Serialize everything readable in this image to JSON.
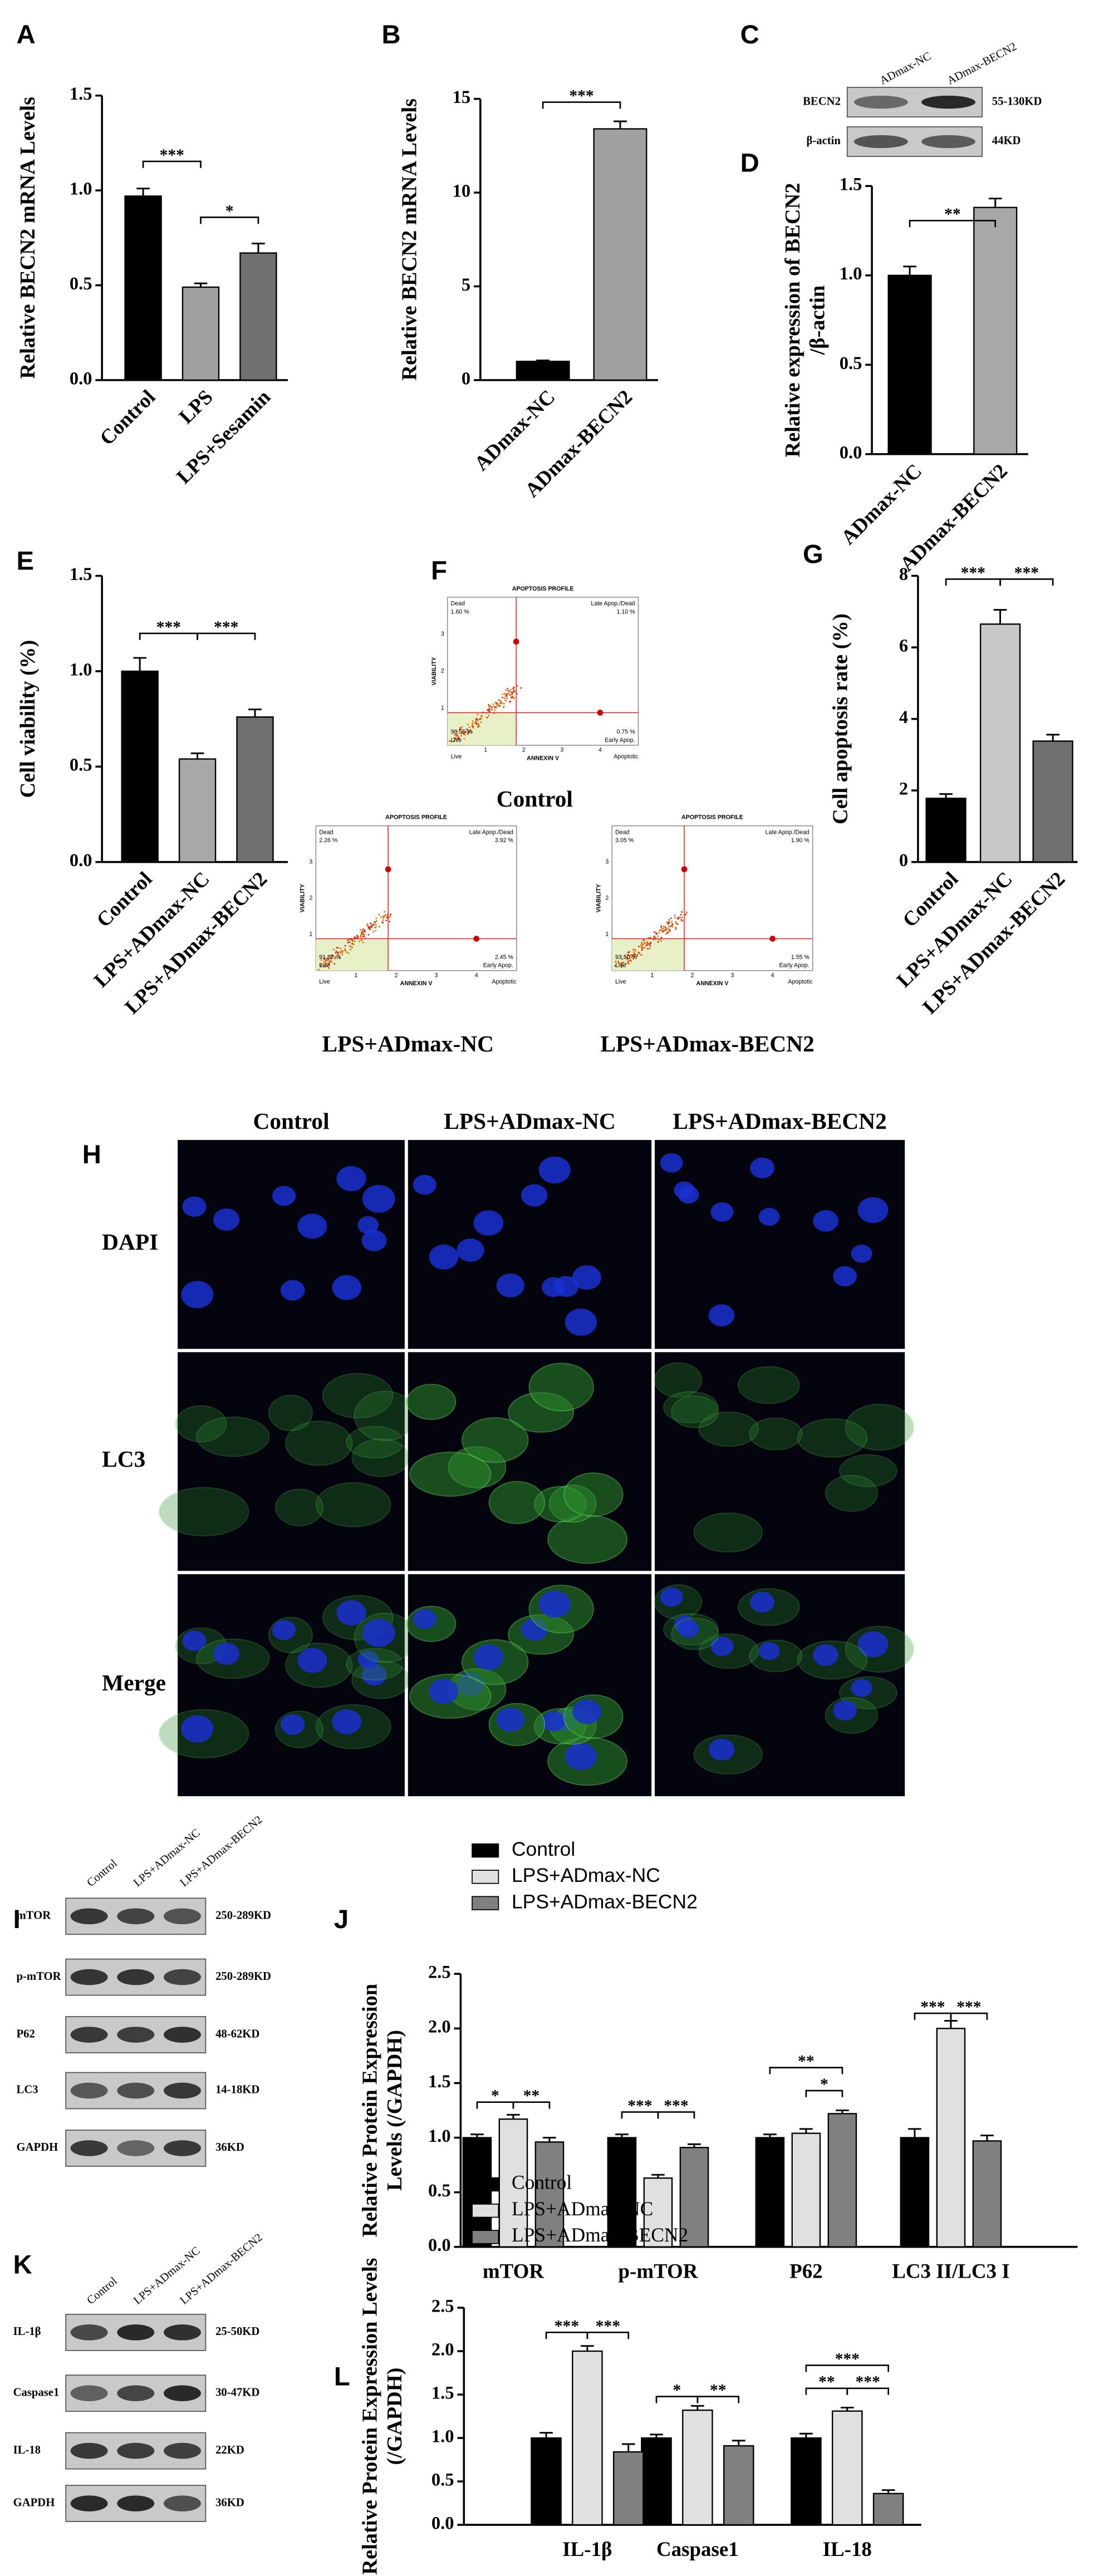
{
  "chart_data": [
    {
      "type": "bar",
      "letter": "A",
      "ylabel": "Relative BECN2 mRNA Levels",
      "categories": [
        "Control",
        "LPS",
        "LPS+Sesamin"
      ],
      "values": [
        0.97,
        0.49,
        0.67
      ],
      "errors": [
        0.04,
        0.02,
        0.05
      ],
      "colors": [
        "#000000",
        "#a0a0a0",
        "#707070"
      ],
      "ylim": [
        0,
        1.5
      ],
      "yticks": [
        {
          "value": 0,
          "label": "0.0"
        },
        {
          "value": 0.5,
          "label": "0.5"
        },
        {
          "value": 1,
          "label": "1.0"
        },
        {
          "value": 1.5,
          "label": "1.5"
        }
      ],
      "annotations": [
        "***",
        "*"
      ]
    },
    {
      "type": "bar",
      "letter": "B",
      "ylabel": "Relative BECN2 mRNA Levels",
      "categories": [
        "ADmax-NC",
        "ADmax-BECN2"
      ],
      "values": [
        1.0,
        13.4
      ],
      "errors": [
        0.05,
        0.4
      ],
      "colors": [
        "#000000",
        "#a0a0a0"
      ],
      "ylim": [
        0,
        15
      ],
      "yticks": [
        0,
        5,
        10,
        15
      ],
      "annotations": [
        "***"
      ]
    },
    {
      "type": "bar",
      "letter": "D",
      "ylabel": [
        "Relative expression of BECN2",
        "/β-actin"
      ],
      "categories": [
        "ADmax-NC",
        "ADmax-BECN2"
      ],
      "values": [
        1.0,
        1.38
      ],
      "errors": [
        0.05,
        0.05
      ],
      "colors": [
        "#000000",
        "#a8a8a8"
      ],
      "ylim": [
        0,
        1.5
      ],
      "yticks": [
        {
          "value": 0,
          "label": "0.0"
        },
        {
          "value": 0.5,
          "label": "0.5"
        },
        {
          "value": 1,
          "label": "1.0"
        },
        {
          "value": 1.5,
          "label": "1.5"
        }
      ],
      "annotations": [
        "**"
      ]
    },
    {
      "type": "bar",
      "letter": "E",
      "ylabel": "Cell viability (%)",
      "categories": [
        "Control",
        "LPS+ADmax-NC",
        "LPS+ADmax-BECN2"
      ],
      "values": [
        1.0,
        0.54,
        0.76
      ],
      "errors": [
        0.07,
        0.03,
        0.04
      ],
      "colors": [
        "#000000",
        "#a8a8a8",
        "#707070"
      ],
      "ylim": [
        0,
        1.5
      ],
      "yticks": [
        {
          "value": 0,
          "label": "0.0"
        },
        {
          "value": 0.5,
          "label": "0.5"
        },
        {
          "value": 1,
          "label": "1.0"
        },
        {
          "value": 1.5,
          "label": "1.5"
        }
      ],
      "annotations": [
        "***",
        "***"
      ]
    },
    {
      "type": "bar",
      "letter": "G",
      "ylabel": "Cell apoptosis rate (%)",
      "categories": [
        "Control",
        "LPS+ADmax-NC",
        "LPS+ADmax-BECN2"
      ],
      "values": [
        1.78,
        6.65,
        3.38
      ],
      "errors": [
        0.12,
        0.4,
        0.18
      ],
      "colors": [
        "#000000",
        "#c8c8c8",
        "#707070"
      ],
      "ylim": [
        0,
        8
      ],
      "yticks": [
        0,
        2,
        4,
        6,
        8
      ],
      "annotations": [
        "***",
        "***"
      ]
    },
    {
      "type": "bar",
      "letter": "J",
      "ylabel": [
        "Relative Protein Expression",
        "Levels (/GAPDH)"
      ],
      "categories": [
        "mTOR",
        "p-mTOR",
        "P62",
        "LC3 II/LC3 I"
      ],
      "series": [
        {
          "name": "Control",
          "color": "#000000",
          "values": [
            1.0,
            1.0,
            1.0,
            1.0
          ],
          "errors": [
            0.03,
            0.03,
            0.03,
            0.08
          ]
        },
        {
          "name": "LPS+ADmax-NC",
          "color": "#e0e0e0",
          "values": [
            1.17,
            0.63,
            1.04,
            2.0
          ],
          "errors": [
            0.04,
            0.03,
            0.04,
            0.07
          ]
        },
        {
          "name": "LPS+ADmax-BECN2",
          "color": "#808080",
          "values": [
            0.96,
            0.91,
            1.22,
            0.97
          ],
          "errors": [
            0.04,
            0.03,
            0.03,
            0.05
          ]
        }
      ],
      "ylim": [
        0,
        2.5
      ],
      "yticks": [
        {
          "value": 0,
          "label": "0.0"
        },
        {
          "value": 0.5,
          "label": "0.5"
        },
        {
          "value": 1,
          "label": "1.0"
        },
        {
          "value": 1.5,
          "label": "1.5"
        },
        {
          "value": 2,
          "label": "2.0"
        },
        {
          "value": 2.5,
          "label": "2.5"
        }
      ],
      "legend": "top-left",
      "annotations": [
        "*",
        "**",
        "***",
        "***",
        "**",
        "*",
        "***",
        "***"
      ]
    },
    {
      "type": "bar",
      "letter": "L",
      "ylabel": [
        "Relative Protein Expression Levels",
        "(/GAPDH)"
      ],
      "categories": [
        "IL-1β",
        "Caspase1",
        "IL-18"
      ],
      "series": [
        {
          "name": "Control",
          "color": "#000000",
          "values": [
            1.0,
            1.0,
            1.0
          ],
          "errors": [
            0.06,
            0.04,
            0.05
          ]
        },
        {
          "name": "LPS+ADmax-NC",
          "color": "#e0e0e0",
          "values": [
            2.0,
            1.32,
            1.31
          ],
          "errors": [
            0.06,
            0.05,
            0.04
          ]
        },
        {
          "name": "LPS+ADmax-BECN2",
          "color": "#808080",
          "values": [
            0.84,
            0.91,
            0.36
          ],
          "errors": [
            0.09,
            0.06,
            0.04
          ]
        }
      ],
      "ylim": [
        0,
        2.5
      ],
      "yticks": [
        {
          "value": 0,
          "label": "0.0"
        },
        {
          "value": 0.5,
          "label": "0.5"
        },
        {
          "value": 1,
          "label": "1.0"
        },
        {
          "value": 1.5,
          "label": "1.5"
        },
        {
          "value": 2,
          "label": "2.0"
        },
        {
          "value": 2.5,
          "label": "2.5"
        }
      ],
      "legend": "top-left",
      "annotations": [
        "***",
        "***",
        "*",
        "**",
        "***",
        "**",
        "***"
      ]
    }
  ],
  "blot_C": {
    "letter": "C",
    "lanes": [
      "ADmax-NC",
      "ADmax-BECN2"
    ],
    "rows": [
      {
        "name": "BECN2",
        "size": "55-130KD"
      },
      {
        "name": "β-actin",
        "size": "44KD"
      }
    ]
  },
  "flow_F": {
    "letter": "F",
    "title": "APOPTOSIS PROFILE",
    "y_axis": "VIABILITY",
    "x_axis": "ANNEXIN V",
    "quadrant_names": [
      "Dead",
      "Late Apop./Dead",
      "Live",
      "Early Apop."
    ],
    "xticks": [
      "1",
      "2",
      "3",
      "4"
    ],
    "yticks": [
      "1",
      "2",
      "3"
    ],
    "x_end_labels": [
      "Live",
      "Apoptotic"
    ],
    "plots": [
      {
        "label": "Control",
        "quadrants": [
          "1.60 %",
          "1.10 %",
          "96.55 %",
          "0.75 %"
        ]
      },
      {
        "label": "LPS+ADmax-NC",
        "quadrants": [
          "2.26 %",
          "3.92 %",
          "91.37 %",
          "2.45 %"
        ]
      },
      {
        "label": "LPS+ADmax-BECN2",
        "quadrants": [
          "3.05 %",
          "1.90 %",
          "93.50 %",
          "1.55 %"
        ]
      }
    ]
  },
  "micro_H": {
    "letter": "H",
    "columns": [
      "Control",
      "LPS+ADmax-NC",
      "LPS+ADmax-BECN2"
    ],
    "rows": [
      "DAPI",
      "LC3",
      "Merge"
    ]
  },
  "blot_I": {
    "letter": "I",
    "lanes": [
      "Control",
      "LPS+ADmax-NC",
      "LPS+ADmax-BECN2"
    ],
    "rows": [
      {
        "name": "mTOR",
        "size": "250-289KD"
      },
      {
        "name": "p-mTOR",
        "size": "250-289KD"
      },
      {
        "name": "P62",
        "size": "48-62KD"
      },
      {
        "name": "LC3",
        "size": "14-18KD"
      },
      {
        "name": "GAPDH",
        "size": "36KD"
      }
    ]
  },
  "blot_K": {
    "letter": "K",
    "lanes": [
      "Control",
      "LPS+ADmax-NC",
      "LPS+ADmax-BECN2"
    ],
    "rows": [
      {
        "name": "IL-1β",
        "size": "25-50KD"
      },
      {
        "name": "Caspase1",
        "size": "30-47KD"
      },
      {
        "name": "IL-18",
        "size": "22KD"
      },
      {
        "name": "GAPDH",
        "size": "36KD"
      }
    ]
  }
}
